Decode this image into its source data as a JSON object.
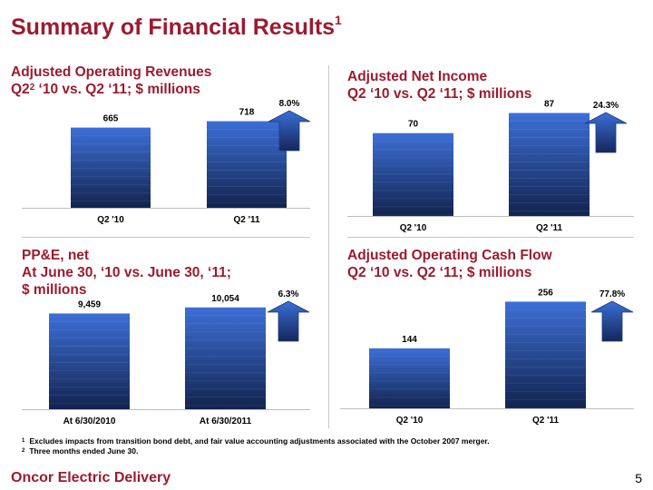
{
  "title": {
    "text": "Summary of Financial Results",
    "sup": "1"
  },
  "chart_data": [
    {
      "type": "bar",
      "title_line1_pre": "Adjusted Operating Revenues",
      "title_line2_pre": "Q2",
      "title_line2_sup": "2",
      "title_line2_post": " ‘10 vs. Q2 ‘11; $ millions",
      "categories": [
        "Q2 '10",
        "Q2 '11"
      ],
      "values": [
        665,
        718
      ],
      "value_labels": [
        "665",
        "718"
      ],
      "change": "8.0%",
      "ylim": [
        0,
        850
      ]
    },
    {
      "type": "bar",
      "title_line1_pre": "Adjusted Net Income",
      "title_line2_pre": "Q2 ‘10 vs. Q2 ‘11; $ millions",
      "categories": [
        "Q2 '10",
        "Q2 '11"
      ],
      "values": [
        70,
        87
      ],
      "value_labels": [
        "70",
        "87"
      ],
      "change": "24.3%",
      "ylim": [
        0,
        92
      ]
    },
    {
      "type": "bar",
      "title_line1_pre": "PP&E, net",
      "title_line2_pre": "At June 30, ‘10 vs. June 30, ‘11;",
      "title_line3_pre": "$ millions",
      "categories": [
        "At 6/30/2010",
        "At 6/30/2011"
      ],
      "values": [
        9459,
        10054
      ],
      "value_labels": [
        "9,459",
        "10,054"
      ],
      "change": "6.3%",
      "ylim": [
        0,
        11200
      ]
    },
    {
      "type": "bar",
      "title_line1_pre": "Adjusted Operating Cash Flow",
      "title_line2_pre": "Q2 ‘10 vs. Q2 ‘11; $ millions",
      "categories": [
        "Q2 '10",
        "Q2 '11"
      ],
      "values": [
        144,
        256
      ],
      "value_labels": [
        "144",
        "256"
      ],
      "change": "77.8%",
      "ylim": [
        0,
        270
      ]
    }
  ],
  "footnotes": [
    {
      "num": "1",
      "text": "Excludes impacts from transition bond debt, and fair value accounting adjustments associated with the October 2007 merger."
    },
    {
      "num": "2",
      "text": "Three months ended June 30."
    }
  ],
  "footer": {
    "company": "Oncor Electric Delivery",
    "page": "5"
  },
  "colors": {
    "accent": "#9b1b30",
    "bar_top": "#3d6fd6",
    "bar_bottom": "#12234f",
    "arrow": "#2c59b8",
    "divider": "#c8c8c8"
  }
}
